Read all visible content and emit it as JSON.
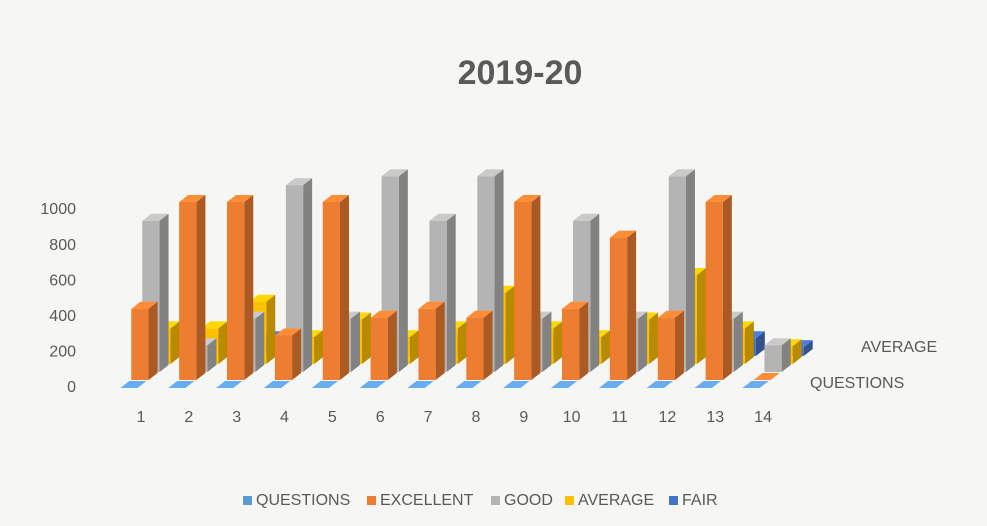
{
  "chart_data": {
    "type": "bar3d",
    "title": "2019-20",
    "categories": [
      "1",
      "2",
      "3",
      "4",
      "5",
      "6",
      "7",
      "8",
      "9",
      "10",
      "11",
      "12",
      "13",
      "14"
    ],
    "series": [
      {
        "name": "QUESTIONS",
        "color": "#5b9bd5",
        "values": [
          0,
          0,
          0,
          0,
          0,
          0,
          0,
          0,
          0,
          0,
          0,
          0,
          0,
          0
        ]
      },
      {
        "name": "EXCELLENT",
        "color": "#ed7d31",
        "values": [
          400,
          1000,
          1000,
          250,
          1000,
          350,
          400,
          350,
          1000,
          400,
          800,
          350,
          1000,
          0
        ]
      },
      {
        "name": "GOOD",
        "color": "#b4b4b4",
        "values": [
          850,
          150,
          300,
          1050,
          300,
          1100,
          850,
          1100,
          300,
          850,
          300,
          1100,
          300,
          150
        ]
      },
      {
        "name": "AVERAGE",
        "color": "#ffc000",
        "values": [
          200,
          200,
          350,
          150,
          250,
          150,
          200,
          400,
          200,
          150,
          250,
          500,
          200,
          100
        ]
      },
      {
        "name": "FAIR",
        "color": "#4472c4",
        "values": [
          100,
          100,
          100,
          100,
          100,
          100,
          100,
          100,
          100,
          100,
          100,
          100,
          100,
          50
        ]
      }
    ],
    "depth_labels": [
      {
        "series": 0,
        "label": "QUESTIONS"
      },
      {
        "series": 3,
        "label": "AVERAGE"
      }
    ],
    "ylim": [
      0,
      1000
    ],
    "yticks": [
      0,
      200,
      400,
      600,
      800,
      1000
    ],
    "legend": "bottom"
  }
}
